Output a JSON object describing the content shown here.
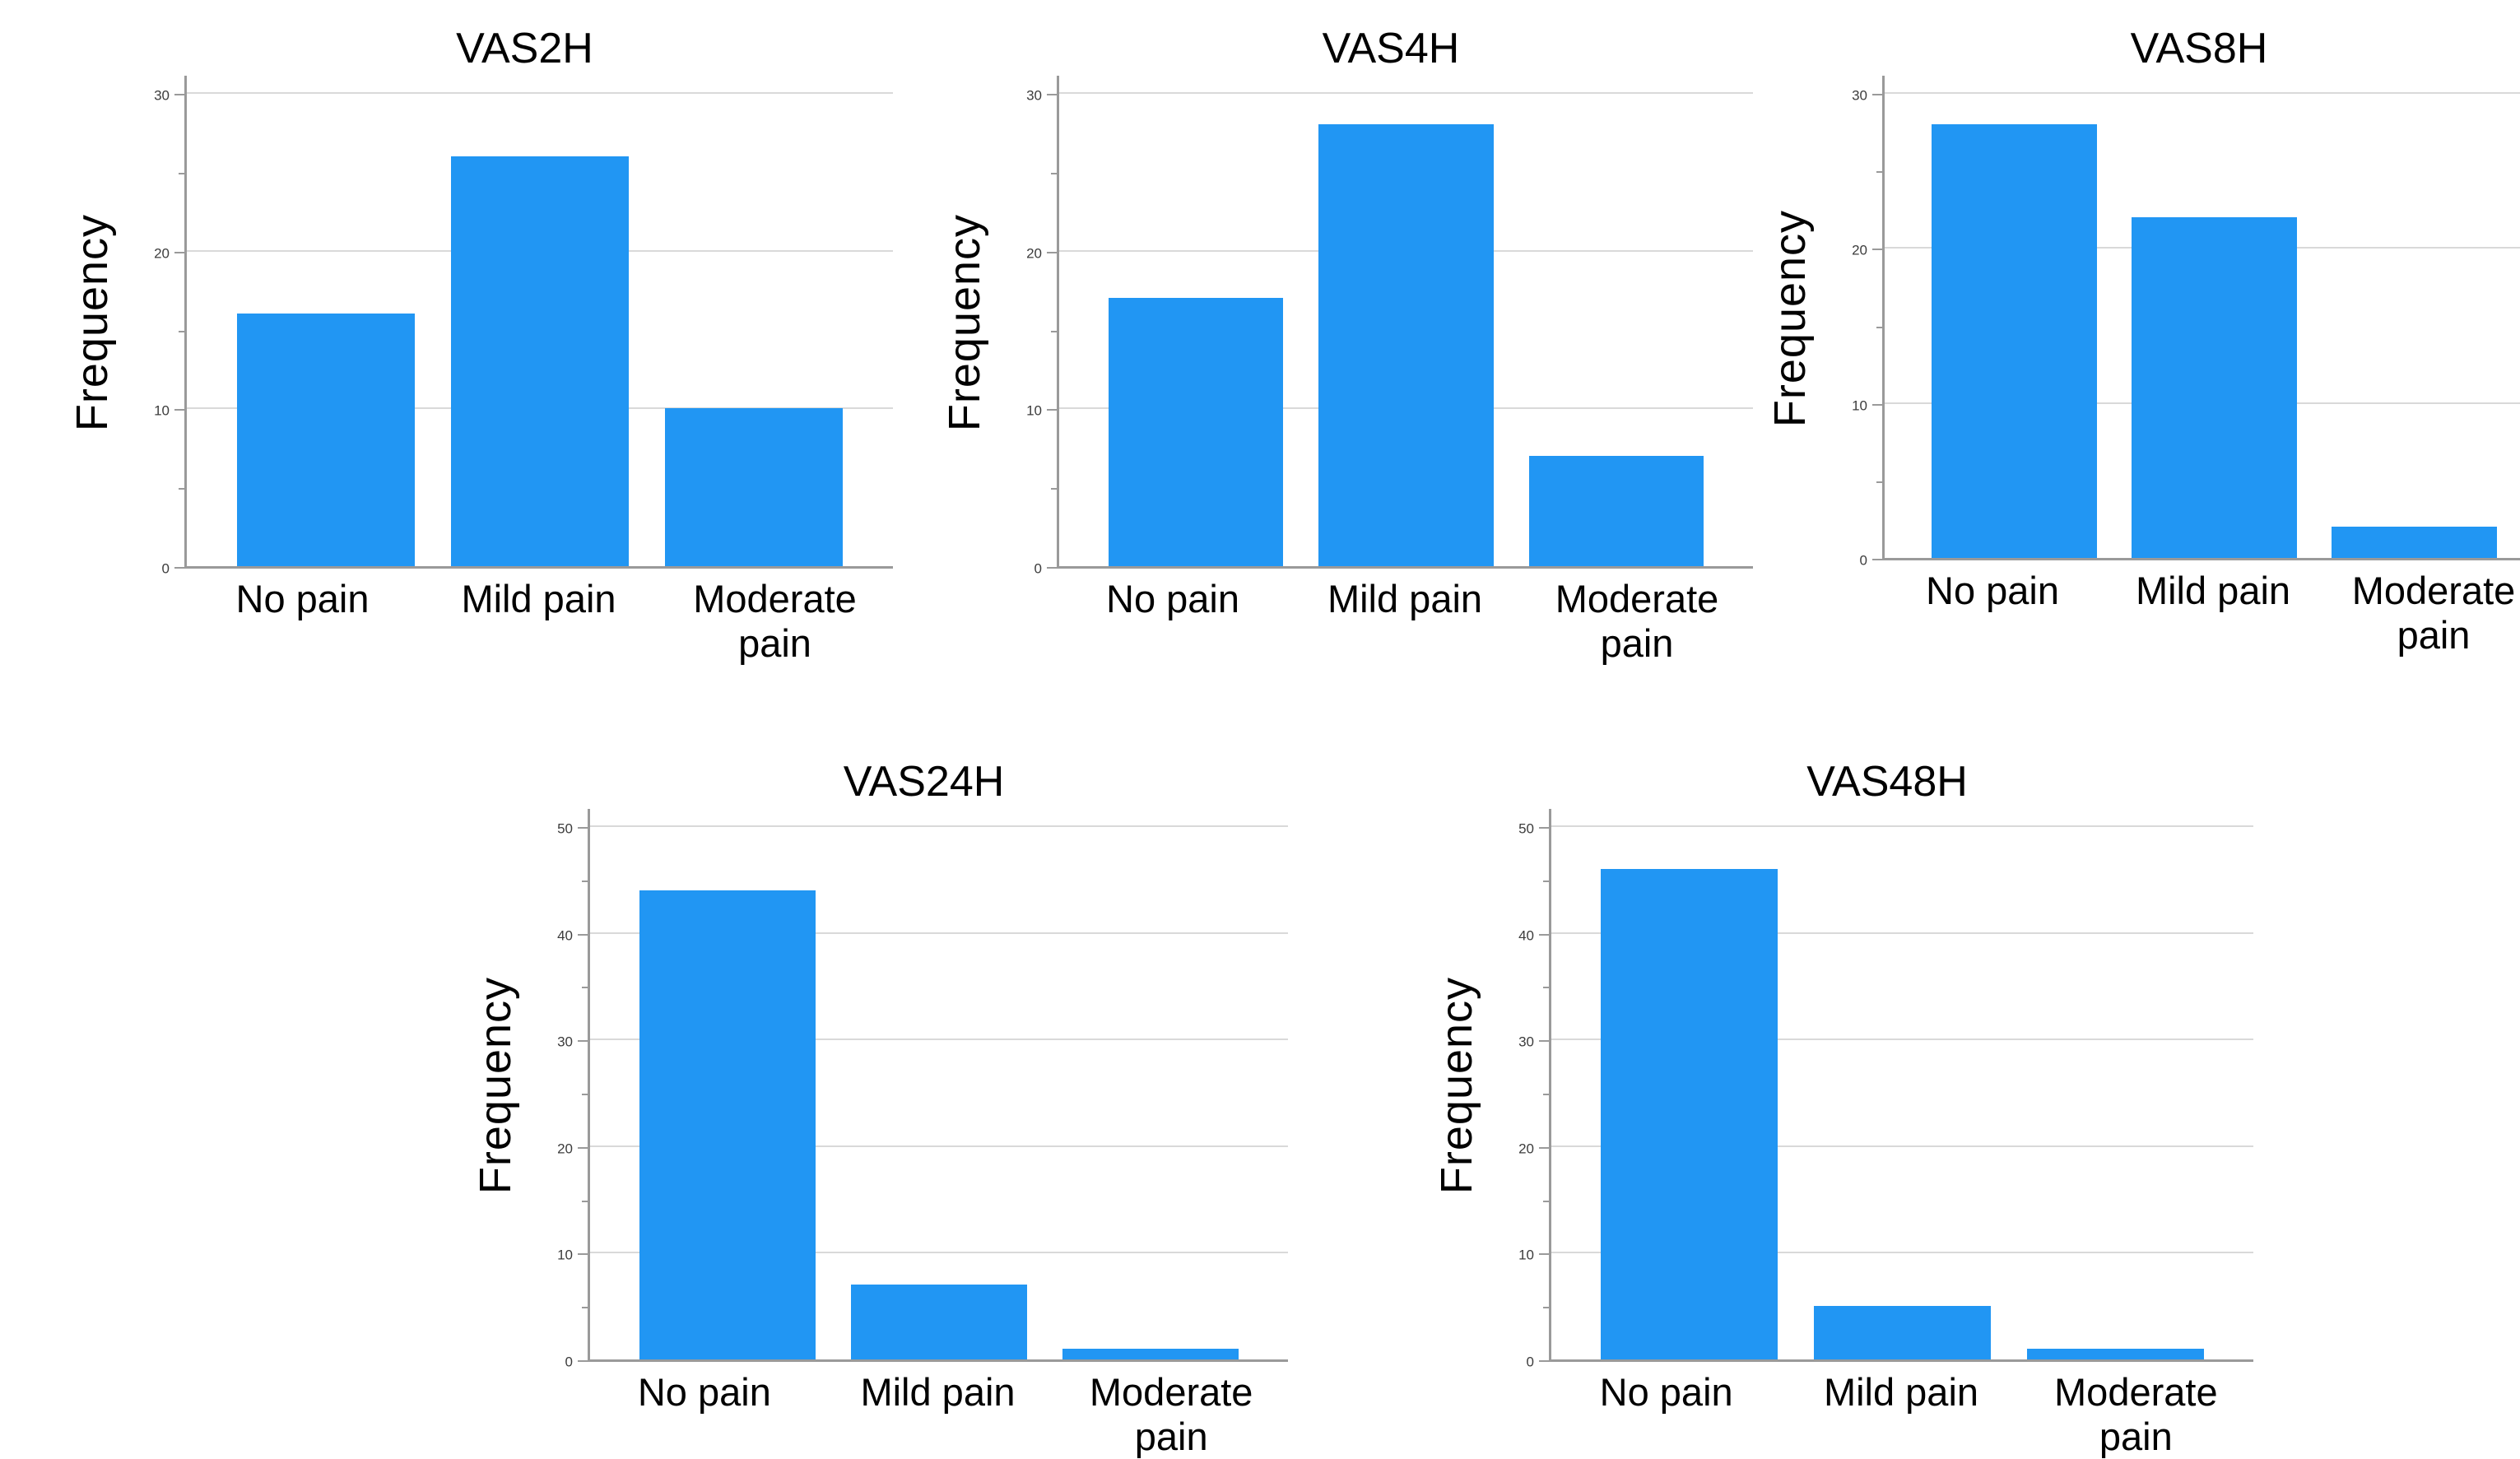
{
  "figure": {
    "background": "#ffffff",
    "text_color": "#000000",
    "axis_color": "#9a9a9a",
    "gridline_color": "#d9d9d9"
  },
  "chart_data": [
    {
      "type": "bar",
      "title": "VAS2H",
      "ylabel": "Frequency",
      "xlabel": "",
      "categories": [
        "No pain",
        "Mild pain",
        "Moderate pain"
      ],
      "values": [
        16,
        26,
        10
      ],
      "ylim": [
        0,
        30
      ],
      "yticks": [
        0,
        10,
        20,
        30
      ],
      "grid": true,
      "legend": "none",
      "bar_color": "#2196f3"
    },
    {
      "type": "bar",
      "title": "VAS4H",
      "ylabel": "Frequency",
      "xlabel": "",
      "categories": [
        "No pain",
        "Mild pain",
        "Moderate pain"
      ],
      "values": [
        17,
        28,
        7
      ],
      "ylim": [
        0,
        30
      ],
      "yticks": [
        0,
        10,
        20,
        30
      ],
      "grid": true,
      "legend": "none",
      "bar_color": "#2196f3"
    },
    {
      "type": "bar",
      "title": "VAS8H",
      "ylabel": "Frequency",
      "xlabel": "",
      "categories": [
        "No pain",
        "Mild pain",
        "Moderate pain"
      ],
      "values": [
        28,
        22,
        2
      ],
      "ylim": [
        0,
        30
      ],
      "yticks": [
        0,
        10,
        20,
        30
      ],
      "grid": true,
      "legend": "none",
      "bar_color": "#2196f3"
    },
    {
      "type": "bar",
      "title": "VAS24H",
      "ylabel": "Frequency",
      "xlabel": "",
      "categories": [
        "No pain",
        "Mild pain",
        "Moderate pain"
      ],
      "values": [
        44,
        7,
        1
      ],
      "ylim": [
        0,
        50
      ],
      "yticks": [
        0,
        10,
        20,
        30,
        40,
        50
      ],
      "grid": true,
      "legend": "none",
      "bar_color": "#2196f3"
    },
    {
      "type": "bar",
      "title": "VAS48H",
      "ylabel": "Frequency",
      "xlabel": "",
      "categories": [
        "No pain",
        "Mild pain",
        "Moderate pain"
      ],
      "values": [
        46,
        5,
        1
      ],
      "ylim": [
        0,
        50
      ],
      "yticks": [
        0,
        10,
        20,
        30,
        40,
        50
      ],
      "grid": true,
      "legend": "none",
      "bar_color": "#2196f3"
    }
  ]
}
